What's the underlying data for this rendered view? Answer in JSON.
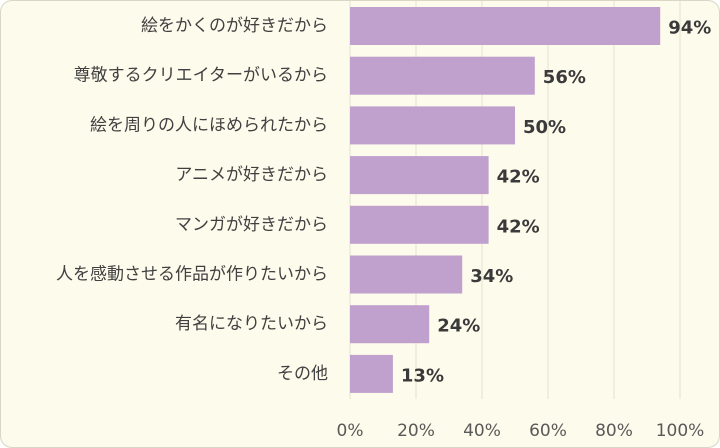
{
  "chart_data": {
    "type": "bar",
    "orientation": "horizontal",
    "categories": [
      "絵をかくのが好きだから",
      "尊敬するクリエイターがいるから",
      "絵を周りの人にほめられたから",
      "アニメが好きだから",
      "マンガが好きだから",
      "人を感動させる作品が作りたいから",
      "有名になりたいから",
      "その他"
    ],
    "values": [
      94,
      56,
      50,
      42,
      42,
      34,
      24,
      13
    ],
    "value_labels": [
      "94%",
      "56%",
      "50%",
      "42%",
      "42%",
      "34%",
      "24%",
      "13%"
    ],
    "x_ticks": [
      "0%",
      "20%",
      "40%",
      "60%",
      "80%",
      "100%"
    ],
    "xlim": [
      0,
      100
    ],
    "grid": true,
    "legend": "none",
    "bar_color": "#c0a0cc",
    "background_color": "#fdfbec",
    "grid_color": "#e4e0cc"
  }
}
